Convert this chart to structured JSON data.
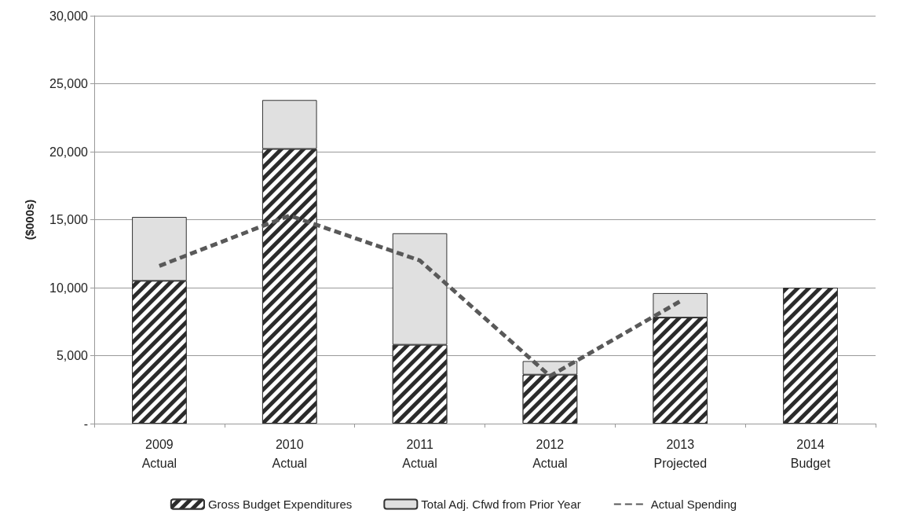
{
  "chart_data": {
    "type": "bar",
    "stacked": true,
    "ylabel": "($000s)",
    "categories": [
      "2009\nActual",
      "2010\nActual",
      "2011\nActual",
      "2012\nActual",
      "2013\nProjected",
      "2014\nBudget"
    ],
    "series": [
      {
        "name": "Gross Budget Expenditures",
        "color": "#2b2b2b",
        "values": [
          10500,
          20200,
          5800,
          3600,
          7800,
          10000
        ]
      },
      {
        "name": "Total Adj. Cfwd from Prior Year",
        "color": "#e0e0e0",
        "values": [
          4700,
          3600,
          8200,
          1000,
          1800,
          null
        ]
      },
      {
        "name": "Actual Spending",
        "type": "line",
        "color": "#595959",
        "line_style": "dashed",
        "marker": "none",
        "values": [
          11600,
          15300,
          12000,
          3500,
          9000,
          null
        ]
      }
    ],
    "ylim": [
      0,
      30000
    ],
    "yticks": [
      {
        "value": 0,
        "label": "-"
      },
      {
        "value": 5000,
        "label": "5,000"
      },
      {
        "value": 10000,
        "label": "10,000"
      },
      {
        "value": 15000,
        "label": "15,000"
      },
      {
        "value": 20000,
        "label": "20,000"
      },
      {
        "value": 25000,
        "label": "25,000"
      },
      {
        "value": 30000,
        "label": "30,000"
      }
    ],
    "grid": "y",
    "legend": "bottom"
  }
}
